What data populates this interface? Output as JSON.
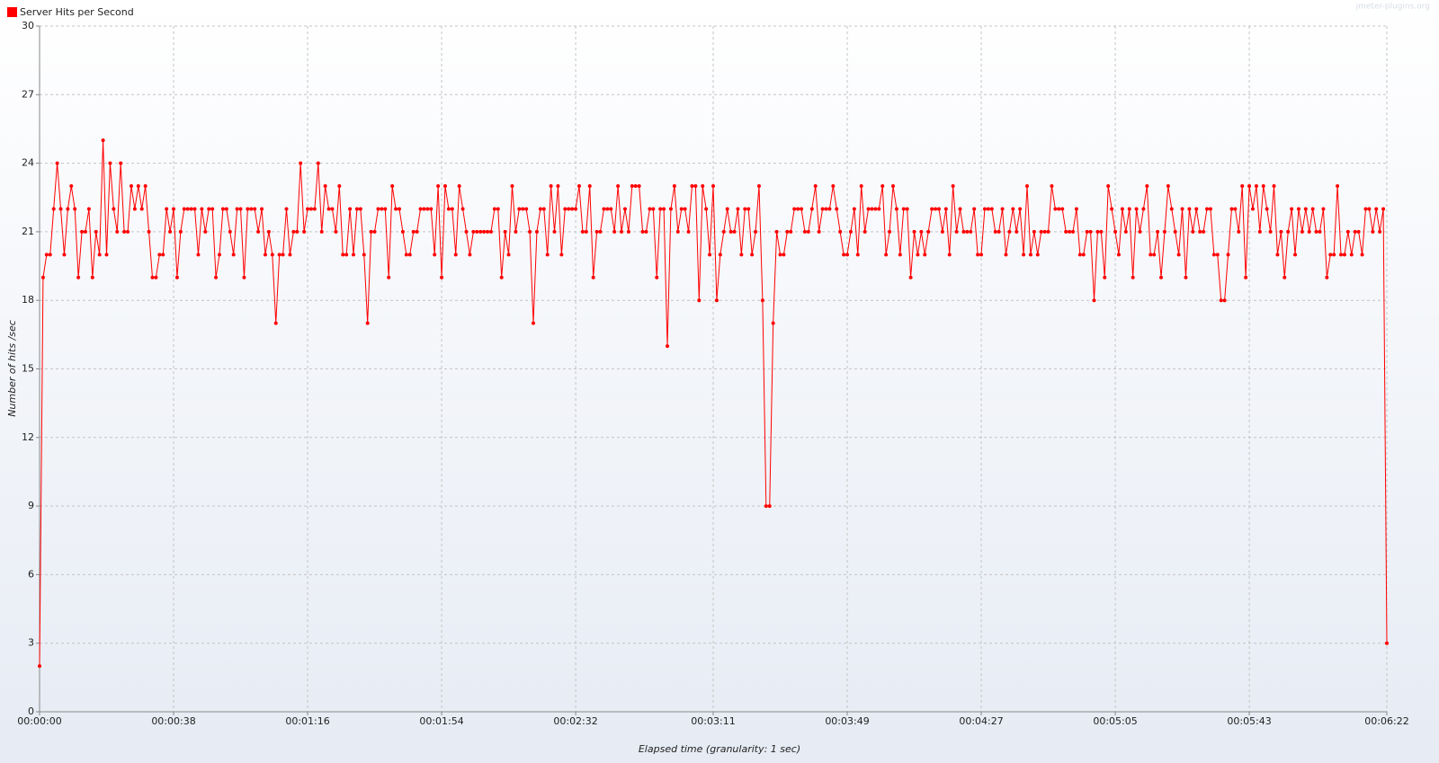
{
  "chart_data": {
    "type": "line",
    "legend_position": "top-left",
    "watermark": "jmeter-plugins.org",
    "x_label": "Elapsed time (granularity: 1 sec)",
    "y_label": "Number of hits /sec",
    "grid": true,
    "xlim": [
      0,
      382
    ],
    "ylim": [
      0,
      30
    ],
    "yticks": [
      0,
      3,
      6,
      9,
      12,
      15,
      18,
      21,
      24,
      27,
      30
    ],
    "xticks": [
      {
        "value": 0,
        "label": "00:00:00"
      },
      {
        "value": 38,
        "label": "00:00:38"
      },
      {
        "value": 76,
        "label": "00:01:16"
      },
      {
        "value": 114,
        "label": "00:01:54"
      },
      {
        "value": 152,
        "label": "00:02:32"
      },
      {
        "value": 191,
        "label": "00:03:11"
      },
      {
        "value": 229,
        "label": "00:03:49"
      },
      {
        "value": 267,
        "label": "00:04:27"
      },
      {
        "value": 305,
        "label": "00:05:05"
      },
      {
        "value": 343,
        "label": "00:05:43"
      },
      {
        "value": 382,
        "label": "00:06:22"
      }
    ],
    "x": [
      0,
      1,
      2,
      3,
      4,
      5,
      6,
      7,
      8,
      9,
      10,
      11,
      12,
      13,
      14,
      15,
      16,
      17,
      18,
      19,
      20,
      21,
      22,
      23,
      24,
      25,
      26,
      27,
      28,
      29,
      30,
      31,
      32,
      33,
      34,
      35,
      36,
      37,
      38,
      39,
      40,
      41,
      42,
      43,
      44,
      45,
      46,
      47,
      48,
      49,
      50,
      51,
      52,
      53,
      54,
      55,
      56,
      57,
      58,
      59,
      60,
      61,
      62,
      63,
      64,
      65,
      66,
      67,
      68,
      69,
      70,
      71,
      72,
      73,
      74,
      75,
      76,
      77,
      78,
      79,
      80,
      81,
      82,
      83,
      84,
      85,
      86,
      87,
      88,
      89,
      90,
      91,
      92,
      93,
      94,
      95,
      96,
      97,
      98,
      99,
      100,
      101,
      102,
      103,
      104,
      105,
      106,
      107,
      108,
      109,
      110,
      111,
      112,
      113,
      114,
      115,
      116,
      117,
      118,
      119,
      120,
      121,
      122,
      123,
      124,
      125,
      126,
      127,
      128,
      129,
      130,
      131,
      132,
      133,
      134,
      135,
      136,
      137,
      138,
      139,
      140,
      141,
      142,
      143,
      144,
      145,
      146,
      147,
      148,
      149,
      150,
      151,
      152,
      153,
      154,
      155,
      156,
      157,
      158,
      159,
      160,
      161,
      162,
      163,
      164,
      165,
      166,
      167,
      168,
      169,
      170,
      171,
      172,
      173,
      174,
      175,
      176,
      177,
      178,
      179,
      180,
      181,
      182,
      183,
      184,
      185,
      186,
      187,
      188,
      189,
      190,
      191,
      192,
      193,
      194,
      195,
      196,
      197,
      198,
      199,
      200,
      201,
      202,
      203,
      204,
      205,
      206,
      207,
      208,
      209,
      210,
      211,
      212,
      213,
      214,
      215,
      216,
      217,
      218,
      219,
      220,
      221,
      222,
      223,
      224,
      225,
      226,
      227,
      228,
      229,
      230,
      231,
      232,
      233,
      234,
      235,
      236,
      237,
      238,
      239,
      240,
      241,
      242,
      243,
      244,
      245,
      246,
      247,
      248,
      249,
      250,
      251,
      252,
      253,
      254,
      255,
      256,
      257,
      258,
      259,
      260,
      261,
      262,
      263,
      264,
      265,
      266,
      267,
      268,
      269,
      270,
      271,
      272,
      273,
      274,
      275,
      276,
      277,
      278,
      279,
      280,
      281,
      282,
      283,
      284,
      285,
      286,
      287,
      288,
      289,
      290,
      291,
      292,
      293,
      294,
      295,
      296,
      297,
      298,
      299,
      300,
      301,
      302,
      303,
      304,
      305,
      306,
      307,
      308,
      309,
      310,
      311,
      312,
      313,
      314,
      315,
      316,
      317,
      318,
      319,
      320,
      321,
      322,
      323,
      324,
      325,
      326,
      327,
      328,
      329,
      330,
      331,
      332,
      333,
      334,
      335,
      336,
      337,
      338,
      339,
      340,
      341,
      342,
      343,
      344,
      345,
      346,
      347,
      348,
      349,
      350,
      351,
      352,
      353,
      354,
      355,
      356,
      357,
      358,
      359,
      360,
      361,
      362,
      363,
      364,
      365,
      366,
      367,
      368,
      369,
      370,
      371,
      372,
      373,
      374,
      375,
      376,
      377,
      378,
      379,
      380,
      381,
      382
    ],
    "series": [
      {
        "name": "Server Hits per Second",
        "color": "#ff0000",
        "values": [
          2,
          19,
          20,
          20,
          22,
          24,
          22,
          20,
          22,
          23,
          22,
          19,
          21,
          21,
          22,
          19,
          21,
          20,
          25,
          20,
          24,
          22,
          21,
          24,
          21,
          21,
          23,
          22,
          23,
          22,
          23,
          21,
          19,
          19,
          20,
          20,
          22,
          21,
          22,
          19,
          21,
          22,
          22,
          22,
          22,
          20,
          22,
          21,
          22,
          22,
          19,
          20,
          22,
          22,
          21,
          20,
          22,
          22,
          19,
          22,
          22,
          22,
          21,
          22,
          20,
          21,
          20,
          17,
          20,
          20,
          22,
          20,
          21,
          21,
          24,
          21,
          22,
          22,
          22,
          24,
          21,
          23,
          22,
          22,
          21,
          23,
          20,
          20,
          22,
          20,
          22,
          22,
          20,
          17,
          21,
          21,
          22,
          22,
          22,
          19,
          23,
          22,
          22,
          21,
          20,
          20,
          21,
          21,
          22,
          22,
          22,
          22,
          20,
          23,
          19,
          23,
          22,
          22,
          20,
          23,
          22,
          21,
          20,
          21,
          21,
          21,
          21,
          21,
          21,
          22,
          22,
          19,
          21,
          20,
          23,
          21,
          22,
          22,
          22,
          21,
          17,
          21,
          22,
          22,
          20,
          23,
          21,
          23,
          20,
          22,
          22,
          22,
          22,
          23,
          21,
          21,
          23,
          19,
          21,
          21,
          22,
          22,
          22,
          21,
          23,
          21,
          22,
          21,
          23,
          23,
          23,
          21,
          21,
          22,
          22,
          19,
          22,
          22,
          16,
          22,
          23,
          21,
          22,
          22,
          21,
          23,
          23,
          18,
          23,
          22,
          20,
          23,
          18,
          20,
          21,
          22,
          21,
          21,
          22,
          20,
          22,
          22,
          20,
          21,
          23,
          18,
          9,
          9,
          17,
          21,
          20,
          20,
          21,
          21,
          22,
          22,
          22,
          21,
          21,
          22,
          23,
          21,
          22,
          22,
          22,
          23,
          22,
          21,
          20,
          20,
          21,
          22,
          20,
          23,
          21,
          22,
          22,
          22,
          22,
          23,
          20,
          21,
          23,
          22,
          20,
          22,
          22,
          19,
          21,
          20,
          21,
          20,
          21,
          22,
          22,
          22,
          21,
          22,
          20,
          23,
          21,
          22,
          21,
          21,
          21,
          22,
          20,
          20,
          22,
          22,
          22,
          21,
          21,
          22,
          20,
          21,
          22,
          21,
          22,
          20,
          23,
          20,
          21,
          20,
          21,
          21,
          21,
          23,
          22,
          22,
          22,
          21,
          21,
          21,
          22,
          20,
          20,
          21,
          21,
          18,
          21,
          21,
          19,
          23,
          22,
          21,
          20,
          22,
          21,
          22,
          19,
          22,
          21,
          22,
          23,
          20,
          20,
          21,
          19,
          21,
          23,
          22,
          21,
          20,
          22,
          19,
          22,
          21,
          22,
          21,
          21,
          22,
          22,
          20,
          20,
          18,
          18,
          20,
          22,
          22,
          21,
          23,
          19,
          23,
          22,
          23,
          21,
          23,
          22,
          21,
          23,
          20,
          21,
          19,
          21,
          22,
          20,
          22,
          21,
          22,
          21,
          22,
          21,
          21,
          22,
          19,
          20,
          20,
          23,
          20,
          20,
          21,
          20,
          21,
          21,
          20,
          22,
          22,
          21,
          22,
          21,
          22,
          3
        ]
      }
    ]
  }
}
